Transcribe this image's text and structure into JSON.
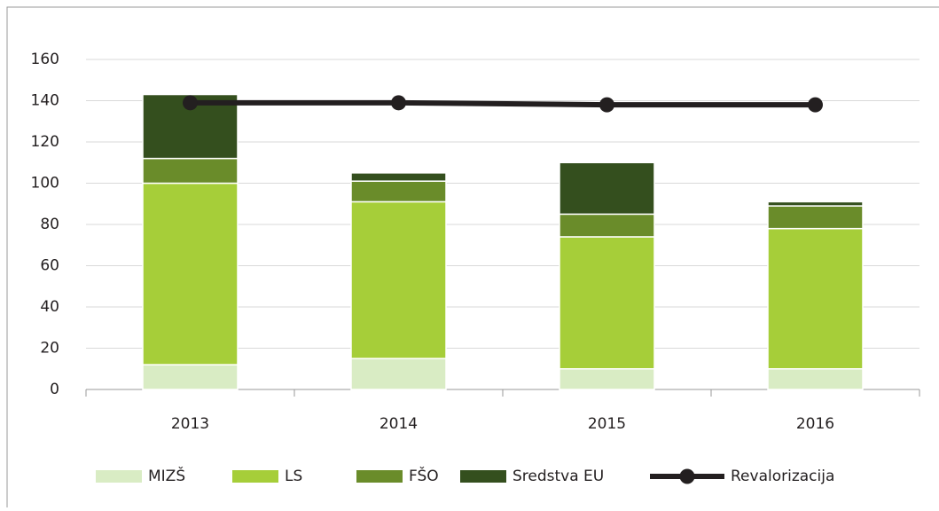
{
  "chart_data": {
    "type": "bar",
    "stacked": true,
    "categories": [
      "2013",
      "2014",
      "2015",
      "2016"
    ],
    "series": [
      {
        "name": "MIZŠ",
        "color": "#d9ecc4",
        "values": [
          12,
          15,
          10,
          10
        ]
      },
      {
        "name": "LS",
        "color": "#a6ce39",
        "values": [
          88,
          76,
          64,
          68
        ]
      },
      {
        "name": "FŠO",
        "color": "#6a8c2a",
        "values": [
          12,
          10,
          11,
          11
        ]
      },
      {
        "name": "Sredstva EU",
        "color": "#344f1e",
        "values": [
          31,
          4,
          25,
          2
        ]
      },
      {
        "name": "Revalorizacija",
        "color": "#231f20",
        "type": "line",
        "values": [
          139,
          139,
          138,
          138
        ]
      }
    ],
    "ylim": [
      0,
      160
    ],
    "yticks": [
      0,
      20,
      40,
      60,
      80,
      100,
      120,
      140,
      160
    ],
    "grid": true,
    "legend": "bottom"
  }
}
